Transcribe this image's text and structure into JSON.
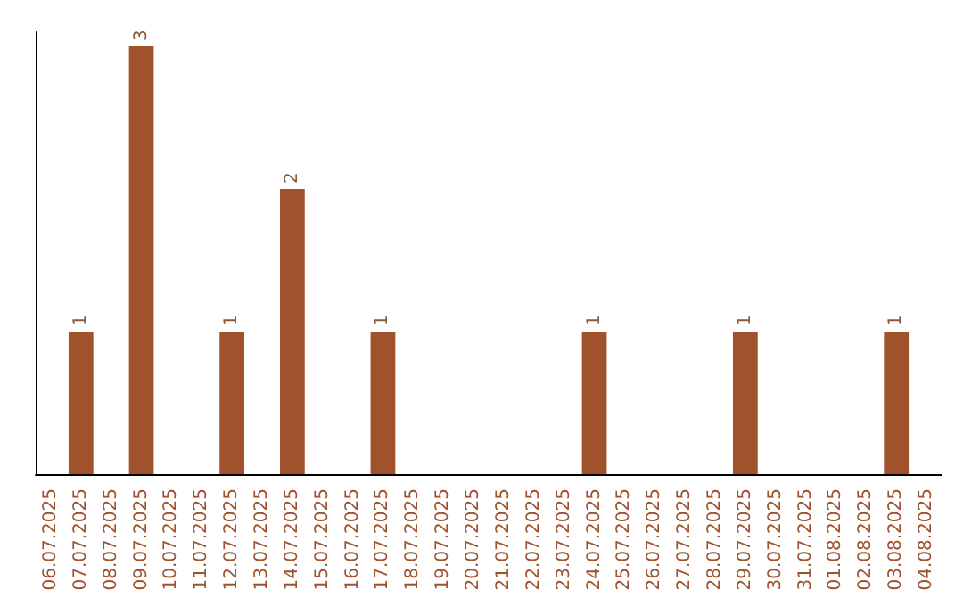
{
  "chart_data": {
    "type": "bar",
    "categories": [
      "06.07.2025",
      "07.07.2025",
      "08.07.2025",
      "09.07.2025",
      "10.07.2025",
      "11.07.2025",
      "12.07.2025",
      "13.07.2025",
      "14.07.2025",
      "15.07.2025",
      "16.07.2025",
      "17.07.2025",
      "18.07.2025",
      "19.07.2025",
      "20.07.2025",
      "21.07.2025",
      "22.07.2025",
      "23.07.2025",
      "24.07.2025",
      "25.07.2025",
      "26.07.2025",
      "27.07.2025",
      "28.07.2025",
      "29.07.2025",
      "30.07.2025",
      "31.07.2025",
      "01.08.2025",
      "02.08.2025",
      "03.08.2025",
      "04.08.2025"
    ],
    "values": [
      0,
      1,
      0,
      3,
      0,
      0,
      1,
      0,
      2,
      0,
      0,
      1,
      0,
      0,
      0,
      0,
      0,
      0,
      1,
      0,
      0,
      0,
      0,
      1,
      0,
      0,
      0,
      0,
      1,
      0
    ],
    "value_labels": [
      null,
      "1",
      null,
      "3",
      null,
      null,
      "1",
      null,
      "2",
      null,
      null,
      "1",
      null,
      null,
      null,
      null,
      null,
      null,
      "1",
      null,
      null,
      null,
      null,
      "1",
      null,
      null,
      null,
      null,
      "1",
      null
    ],
    "color": "#a0522d",
    "ylim": [
      0,
      3.1
    ],
    "tick_labels": "x"
  }
}
